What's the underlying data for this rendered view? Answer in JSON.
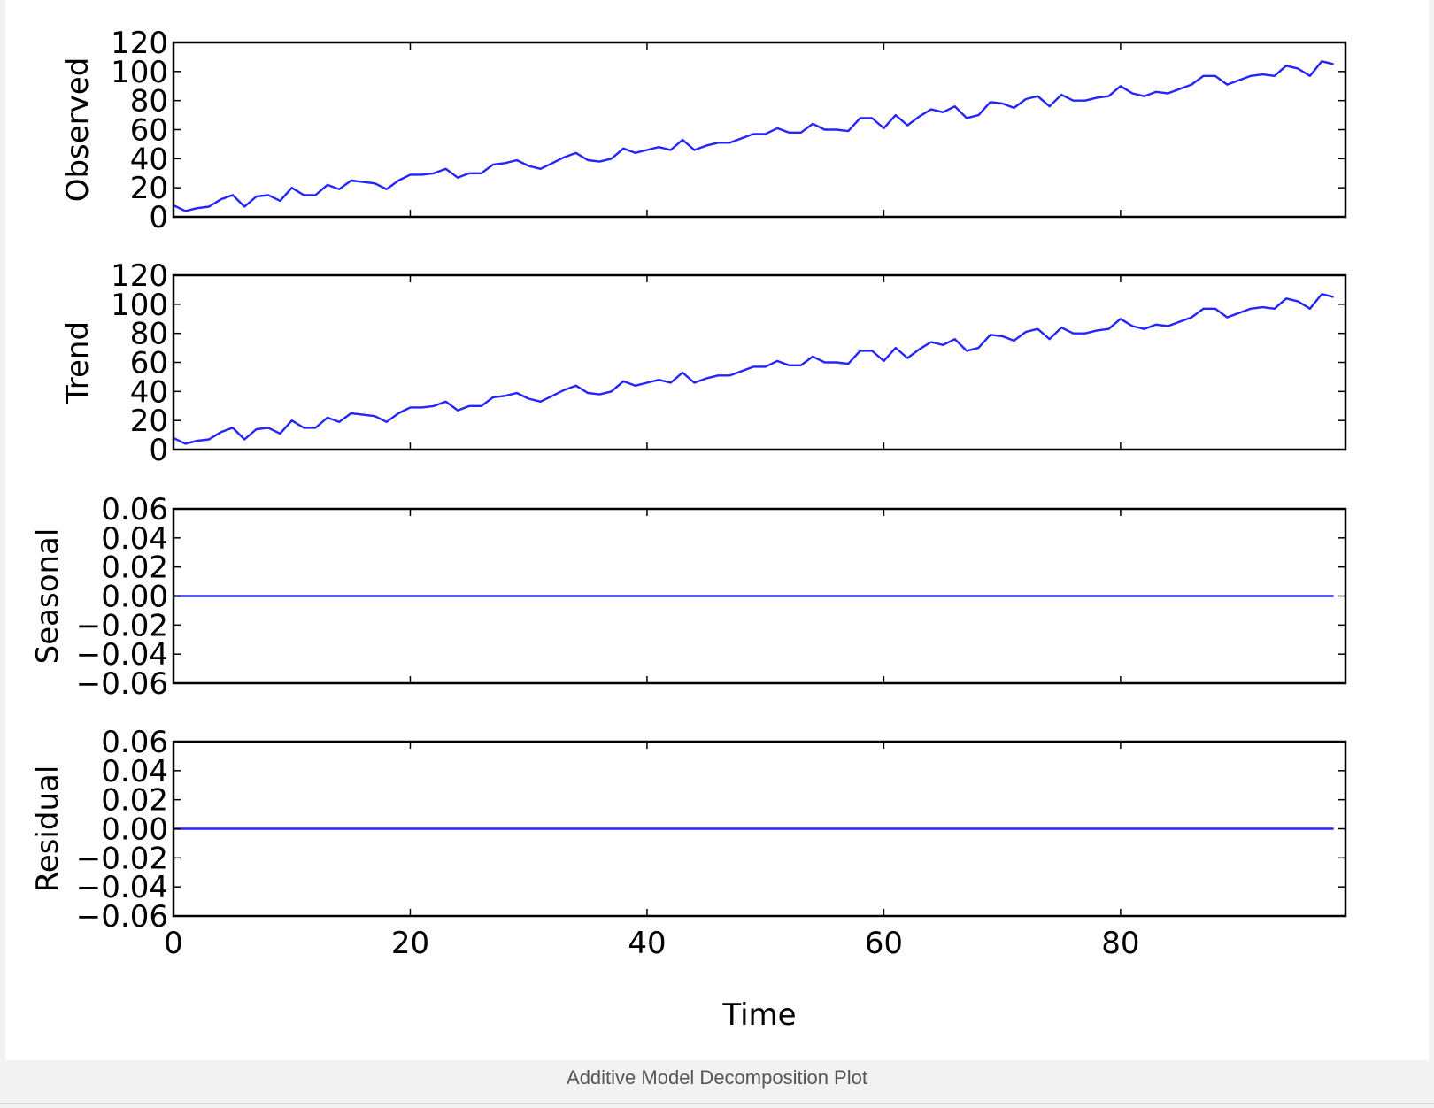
{
  "caption": "Additive Model Decomposition Plot",
  "colors": {
    "line": "#2424ff",
    "axes": "#000000",
    "background": "#ffffff"
  },
  "chart_data": {
    "type": "line",
    "xlabel": "Time",
    "xlim": [
      0,
      99
    ],
    "x_ticks": [
      0,
      20,
      40,
      60,
      80
    ],
    "x_tick_labels": [
      "0",
      "20",
      "40",
      "60",
      "80"
    ],
    "panels": [
      {
        "id": "observed",
        "ylabel": "Observed",
        "ylim": [
          0,
          120
        ],
        "y_ticks": [
          0,
          20,
          40,
          60,
          80,
          100,
          120
        ],
        "y_tick_labels": [
          "0",
          "20",
          "40",
          "60",
          "80",
          "100",
          "120"
        ],
        "values": [
          8,
          4,
          6,
          7,
          12,
          15,
          7,
          14,
          15,
          11,
          20,
          15,
          15,
          22,
          19,
          25,
          24,
          23,
          19,
          25,
          29,
          29,
          30,
          33,
          27,
          30,
          30,
          36,
          37,
          39,
          35,
          33,
          37,
          41,
          44,
          39,
          38,
          40,
          47,
          44,
          46,
          48,
          46,
          53,
          46,
          49,
          51,
          51,
          54,
          57,
          57,
          61,
          58,
          58,
          64,
          60,
          60,
          59,
          68,
          68,
          61,
          70,
          63,
          69,
          74,
          72,
          76,
          68,
          70,
          79,
          78,
          75,
          81,
          83,
          76,
          84,
          80,
          80,
          82,
          83,
          90,
          85,
          83,
          86,
          85,
          88,
          91,
          97,
          97,
          91,
          94,
          97,
          98,
          97,
          104,
          102,
          97,
          107,
          105
        ]
      },
      {
        "id": "trend",
        "ylabel": "Trend",
        "ylim": [
          0,
          120
        ],
        "y_ticks": [
          0,
          20,
          40,
          60,
          80,
          100,
          120
        ],
        "y_tick_labels": [
          "0",
          "20",
          "40",
          "60",
          "80",
          "100",
          "120"
        ],
        "values": [
          8,
          4,
          6,
          7,
          12,
          15,
          7,
          14,
          15,
          11,
          20,
          15,
          15,
          22,
          19,
          25,
          24,
          23,
          19,
          25,
          29,
          29,
          30,
          33,
          27,
          30,
          30,
          36,
          37,
          39,
          35,
          33,
          37,
          41,
          44,
          39,
          38,
          40,
          47,
          44,
          46,
          48,
          46,
          53,
          46,
          49,
          51,
          51,
          54,
          57,
          57,
          61,
          58,
          58,
          64,
          60,
          60,
          59,
          68,
          68,
          61,
          70,
          63,
          69,
          74,
          72,
          76,
          68,
          70,
          79,
          78,
          75,
          81,
          83,
          76,
          84,
          80,
          80,
          82,
          83,
          90,
          85,
          83,
          86,
          85,
          88,
          91,
          97,
          97,
          91,
          94,
          97,
          98,
          97,
          104,
          102,
          97,
          107,
          105
        ]
      },
      {
        "id": "seasonal",
        "ylabel": "Seasonal",
        "ylim": [
          -0.06,
          0.06
        ],
        "y_ticks": [
          -0.06,
          -0.04,
          -0.02,
          0.0,
          0.02,
          0.04,
          0.06
        ],
        "y_tick_labels": [
          "−0.06",
          "−0.04",
          "−0.02",
          "0.00",
          "0.02",
          "0.04",
          "0.06"
        ],
        "constant_value": 0.0
      },
      {
        "id": "residual",
        "ylabel": "Residual",
        "ylim": [
          -0.06,
          0.06
        ],
        "y_ticks": [
          -0.06,
          -0.04,
          -0.02,
          0.0,
          0.02,
          0.04,
          0.06
        ],
        "y_tick_labels": [
          "−0.06",
          "−0.04",
          "−0.02",
          "0.00",
          "0.02",
          "0.04",
          "0.06"
        ],
        "constant_value": 0.0
      }
    ]
  }
}
